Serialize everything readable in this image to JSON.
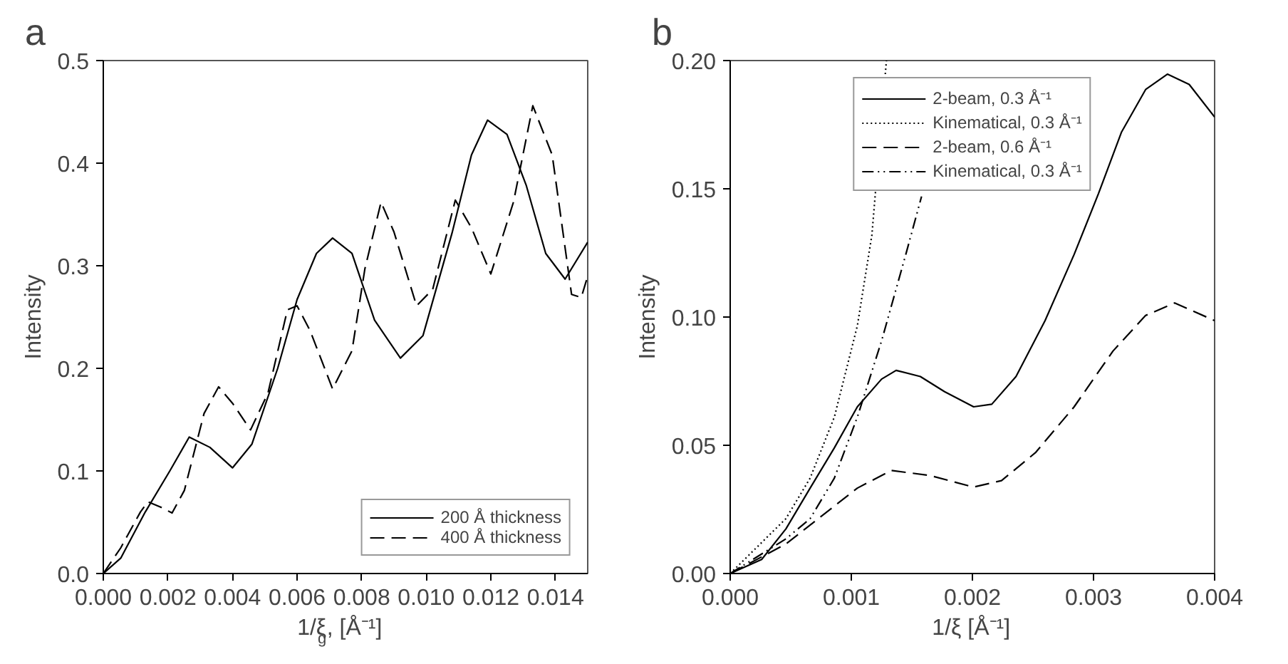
{
  "chart_data": [
    {
      "type": "line",
      "title": "a",
      "xlabel": "1/ξ$_{g}$, [Å⁻¹]",
      "ylabel": "Intensity",
      "xlim": [
        0,
        0.015
      ],
      "ylim": [
        0,
        0.5
      ],
      "xticks": [
        {
          "value": 0,
          "label": "0.000"
        },
        {
          "value": 0.002,
          "label": "0.002"
        },
        {
          "value": 0.004,
          "label": "0.004"
        },
        {
          "value": 0.006,
          "label": "0.006"
        },
        {
          "value": 0.008,
          "label": "0.008"
        },
        {
          "value": 0.01,
          "label": "0.010"
        },
        {
          "value": 0.012,
          "label": "0.012"
        },
        {
          "value": 0.014,
          "label": "0.014"
        }
      ],
      "yticks": [
        {
          "value": 0,
          "label": "0.0"
        },
        0.1,
        0.2,
        0.3,
        0.4,
        0.5
      ],
      "grid": false,
      "legend": "bottom right",
      "series": [
        {
          "name": "200 Å thickness",
          "color": "#000000",
          "line_style": "solid",
          "x": [
            0,
            0.00054,
            0.0013,
            0.00206,
            0.00266,
            0.0033,
            0.004,
            0.0046,
            0.0054,
            0.006,
            0.0066,
            0.0071,
            0.0077,
            0.0084,
            0.0092,
            0.0099,
            0.0108,
            0.0114,
            0.0119,
            0.0125,
            0.0131,
            0.0137,
            0.0143,
            0.015
          ],
          "values": [
            0,
            0.015,
            0.06,
            0.1,
            0.133,
            0.123,
            0.103,
            0.126,
            0.2,
            0.267,
            0.312,
            0.327,
            0.312,
            0.247,
            0.21,
            0.232,
            0.332,
            0.408,
            0.442,
            0.428,
            0.378,
            0.312,
            0.287,
            0.323
          ]
        },
        {
          "name": "400 Å thickness",
          "color": "#000000",
          "line_style": "dashed",
          "x": [
            0,
            0.00054,
            0.00115,
            0.00138,
            0.00176,
            0.00213,
            0.00251,
            0.00312,
            0.00357,
            0.004,
            0.00456,
            0.0051,
            0.0057,
            0.006,
            0.0064,
            0.0071,
            0.0077,
            0.0081,
            0.0086,
            0.009,
            0.0097,
            0.0102,
            0.0109,
            0.0114,
            0.012,
            0.0127,
            0.0133,
            0.0139,
            0.0145,
            0.0148,
            0.015
          ],
          "values": [
            0,
            0.025,
            0.06,
            0.07,
            0.065,
            0.059,
            0.081,
            0.156,
            0.182,
            0.166,
            0.14,
            0.176,
            0.257,
            0.261,
            0.237,
            0.18,
            0.217,
            0.297,
            0.362,
            0.333,
            0.261,
            0.277,
            0.364,
            0.337,
            0.292,
            0.362,
            0.456,
            0.408,
            0.272,
            0.269,
            0.29
          ]
        }
      ]
    },
    {
      "type": "line",
      "title": "b",
      "xlabel": "1/ξ [Å⁻¹]",
      "ylabel": "Intensity",
      "xlim": [
        0,
        0.004
      ],
      "ylim": [
        0,
        0.2
      ],
      "xticks": [
        {
          "value": 0,
          "label": "0.000"
        },
        0.001,
        0.002,
        0.003,
        0.004
      ],
      "yticks": [
        {
          "value": 0,
          "label": "0.00"
        },
        0.05,
        {
          "value": 0.1,
          "label": "0.10"
        },
        0.15,
        {
          "value": 0.2,
          "label": "0.20"
        }
      ],
      "grid": false,
      "legend": "top",
      "series": [
        {
          "name": "2-beam, 0.3 Å⁻¹",
          "color": "#000000",
          "line_style": "solid",
          "x": [
            0,
            0.00026,
            0.00046,
            0.00066,
            0.00086,
            0.00105,
            0.00125,
            0.00137,
            0.00157,
            0.00177,
            0.00201,
            0.00216,
            0.00236,
            0.0026,
            0.00284,
            0.00304,
            0.00323,
            0.00343,
            0.00361,
            0.00379,
            0.004
          ],
          "values": [
            0,
            0.0055,
            0.0174,
            0.0333,
            0.049,
            0.065,
            0.0758,
            0.0792,
            0.0768,
            0.0709,
            0.065,
            0.066,
            0.0768,
            0.0986,
            0.1244,
            0.148,
            0.172,
            0.1887,
            0.1947,
            0.1907,
            0.178
          ]
        },
        {
          "name": "Kinematical, 0.3 Å⁻¹",
          "color": "#000000",
          "line_style": "dotted",
          "x": [
            0,
            0.00046,
            0.00066,
            0.00086,
            0.00105,
            0.00117,
            0.00129
          ],
          "values": [
            0,
            0.0214,
            0.0372,
            0.061,
            0.0966,
            0.132,
            0.2
          ]
        },
        {
          "name": "2-beam, 0.6 Å⁻¹",
          "color": "#000000",
          "line_style": "dashed",
          "x": [
            0,
            0.00046,
            0.00086,
            0.00105,
            0.00133,
            0.00165,
            0.00201,
            0.00224,
            0.00252,
            0.00284,
            0.00316,
            0.00343,
            0.00367,
            0.004
          ],
          "values": [
            0,
            0.0115,
            0.0263,
            0.0333,
            0.0402,
            0.0382,
            0.0337,
            0.0362,
            0.0471,
            0.065,
            0.0867,
            0.1006,
            0.1055,
            0.0986
          ]
        },
        {
          "name": "Kinematical, 0.3 Å⁻¹",
          "color": "#000000",
          "line_style": "dashdot",
          "x": [
            0,
            0.00046,
            0.00066,
            0.00086,
            0.00105,
            0.00125,
            0.00145,
            0.00158
          ],
          "values": [
            0,
            0.0135,
            0.0214,
            0.0372,
            0.061,
            0.0907,
            0.1244,
            0.147
          ]
        }
      ]
    }
  ]
}
